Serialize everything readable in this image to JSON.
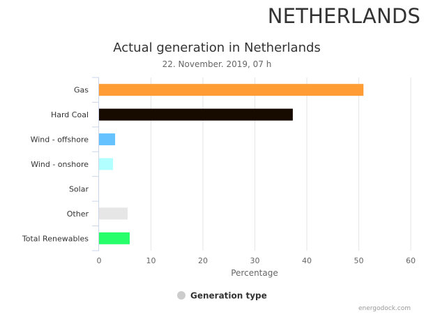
{
  "header": {
    "country": "NETHERLANDS"
  },
  "footer": {
    "credit": "energodock.com"
  },
  "chart_data": {
    "type": "bar",
    "orientation": "horizontal",
    "title": "Actual generation in Netherlands",
    "subtitle": "22. November. 2019, 07 h",
    "xlabel": "Percentage",
    "ylabel": "",
    "xlim": [
      0,
      60
    ],
    "xticks": [
      0,
      10,
      20,
      30,
      40,
      50,
      60
    ],
    "grid": true,
    "categories": [
      "Gas",
      "Hard Coal",
      "Wind - offshore",
      "Wind - onshore",
      "Solar",
      "Other",
      "Total Renewables"
    ],
    "values": [
      50.9,
      37.3,
      3.1,
      2.7,
      0,
      5.5,
      5.9
    ],
    "colors": [
      "#ff9c33",
      "#170b00",
      "#66c2ff",
      "#b2ffff",
      "#ffff66",
      "#e6e6e6",
      "#26ff6a"
    ],
    "legend": {
      "label": "Generation type",
      "placement": "bottom-center",
      "marker_color": "#cccccc"
    }
  }
}
